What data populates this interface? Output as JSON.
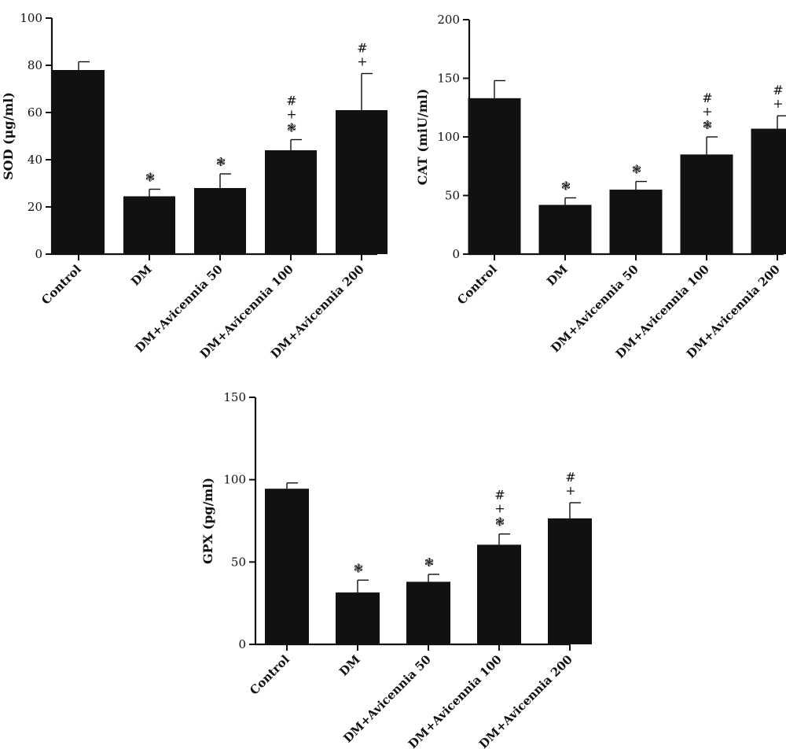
{
  "chart_data": [
    {
      "type": "bar",
      "ylabel": "SOD (μg/ml)",
      "ylim": [
        0,
        100
      ],
      "yticks": [
        0,
        20,
        40,
        60,
        80,
        100
      ],
      "categories": [
        "Control",
        "DM",
        "DM+Avicennia 50",
        "DM+Avicennia 100",
        "DM+Avicennia 200"
      ],
      "values": [
        78,
        24.5,
        28,
        44,
        61
      ],
      "errors": [
        3.5,
        3,
        6,
        4.5,
        15.5
      ],
      "annotations": [
        [],
        [
          "❃"
        ],
        [
          "❃"
        ],
        [
          "#",
          "+",
          "❃"
        ],
        [
          "#",
          "+"
        ]
      ],
      "bar_color": "#111111"
    },
    {
      "type": "bar",
      "ylabel": "CAT (miU/ml)",
      "ylim": [
        0,
        200
      ],
      "yticks": [
        0,
        50,
        100,
        150,
        200
      ],
      "categories": [
        "Control",
        "DM",
        "DM+Avicennia 50",
        "DM+Avicennia 100",
        "DM+Avicennia 200"
      ],
      "values": [
        133,
        42,
        55,
        85,
        107
      ],
      "errors": [
        15,
        6,
        7,
        15,
        11
      ],
      "annotations": [
        [],
        [
          "❃"
        ],
        [
          "❃"
        ],
        [
          "#",
          "+",
          "❃"
        ],
        [
          "#",
          "+"
        ]
      ],
      "bar_color": "#111111"
    },
    {
      "type": "bar",
      "ylabel": "GPX (pg/ml)",
      "ylim": [
        0,
        150
      ],
      "yticks": [
        0,
        50,
        100,
        150
      ],
      "categories": [
        "Control",
        "DM",
        "DM+Avicennia 50",
        "DM+Avicennia 100",
        "DM+Avicennia 200"
      ],
      "values": [
        94.5,
        31.5,
        38,
        60.5,
        76.5
      ],
      "errors": [
        3.5,
        7.5,
        4.5,
        6.5,
        9.5
      ],
      "annotations": [
        [],
        [
          "❃"
        ],
        [
          "❃"
        ],
        [
          "#",
          "+",
          "❃"
        ],
        [
          "#",
          "+"
        ]
      ],
      "bar_color": "#111111"
    }
  ]
}
